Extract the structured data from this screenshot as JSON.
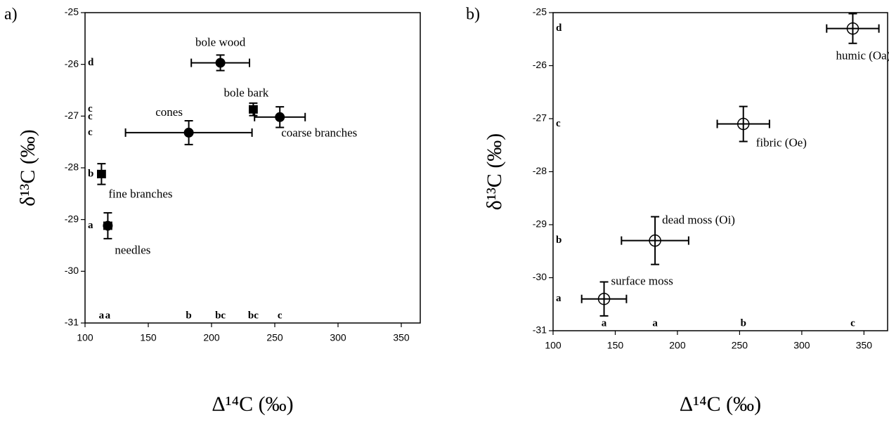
{
  "chart_data": [
    {
      "type": "scatter",
      "panel": "a)",
      "xlabel": "Δ¹⁴C (‰)",
      "ylabel": "δ¹³C (‰)",
      "xlim": [
        100,
        365
      ],
      "ylim": [
        -31,
        -25
      ],
      "xticks": [
        100,
        150,
        200,
        250,
        300,
        350
      ],
      "yticks": [
        -31,
        -30,
        -29,
        -28,
        -27,
        -26,
        -25
      ],
      "point_labels": [
        "bole wood",
        "bole bark",
        "coarse branches",
        "cones",
        "fine branches",
        "needles"
      ],
      "x": [
        207,
        233,
        254,
        182,
        113,
        118
      ],
      "values": [
        -25.97,
        -26.87,
        -27.02,
        -27.32,
        -28.12,
        -29.12
      ],
      "xerr": [
        23,
        3,
        20,
        50,
        3,
        3
      ],
      "yerr": [
        0.15,
        0.12,
        0.2,
        0.23,
        0.2,
        0.25
      ],
      "markers": [
        "circle",
        "square",
        "circle",
        "circle",
        "square",
        "circle"
      ],
      "y_letters": [
        "d",
        "c",
        "c",
        "c",
        "b",
        "a"
      ],
      "x_letters": [
        "bc",
        "bc",
        "c",
        "b",
        "a",
        "a"
      ],
      "color": "#000000"
    },
    {
      "type": "scatter",
      "panel": "b)",
      "xlabel": "Δ¹⁴C (‰)",
      "ylabel": "δ¹³C (‰)",
      "xlim": [
        100,
        369
      ],
      "ylim": [
        -31,
        -25
      ],
      "xticks": [
        100,
        150,
        200,
        250,
        300,
        350
      ],
      "yticks": [
        -31,
        -30,
        -29,
        -28,
        -27,
        -26,
        -25
      ],
      "point_labels": [
        "humic (Oa)",
        "fibric (Oe)",
        "dead moss (Oi)",
        "surface moss"
      ],
      "x": [
        341,
        253,
        182,
        141
      ],
      "values": [
        -25.3,
        -27.1,
        -29.3,
        -30.4
      ],
      "xerr": [
        21,
        21,
        27,
        18
      ],
      "yerr": [
        0.28,
        0.33,
        0.45,
        0.32
      ],
      "markers": [
        "open-circle",
        "open-circle",
        "open-circle",
        "open-circle"
      ],
      "y_letters": [
        "d",
        "c",
        "b",
        "a"
      ],
      "x_letters": [
        "c",
        "b",
        "a",
        "a"
      ],
      "color": "#000000"
    }
  ]
}
